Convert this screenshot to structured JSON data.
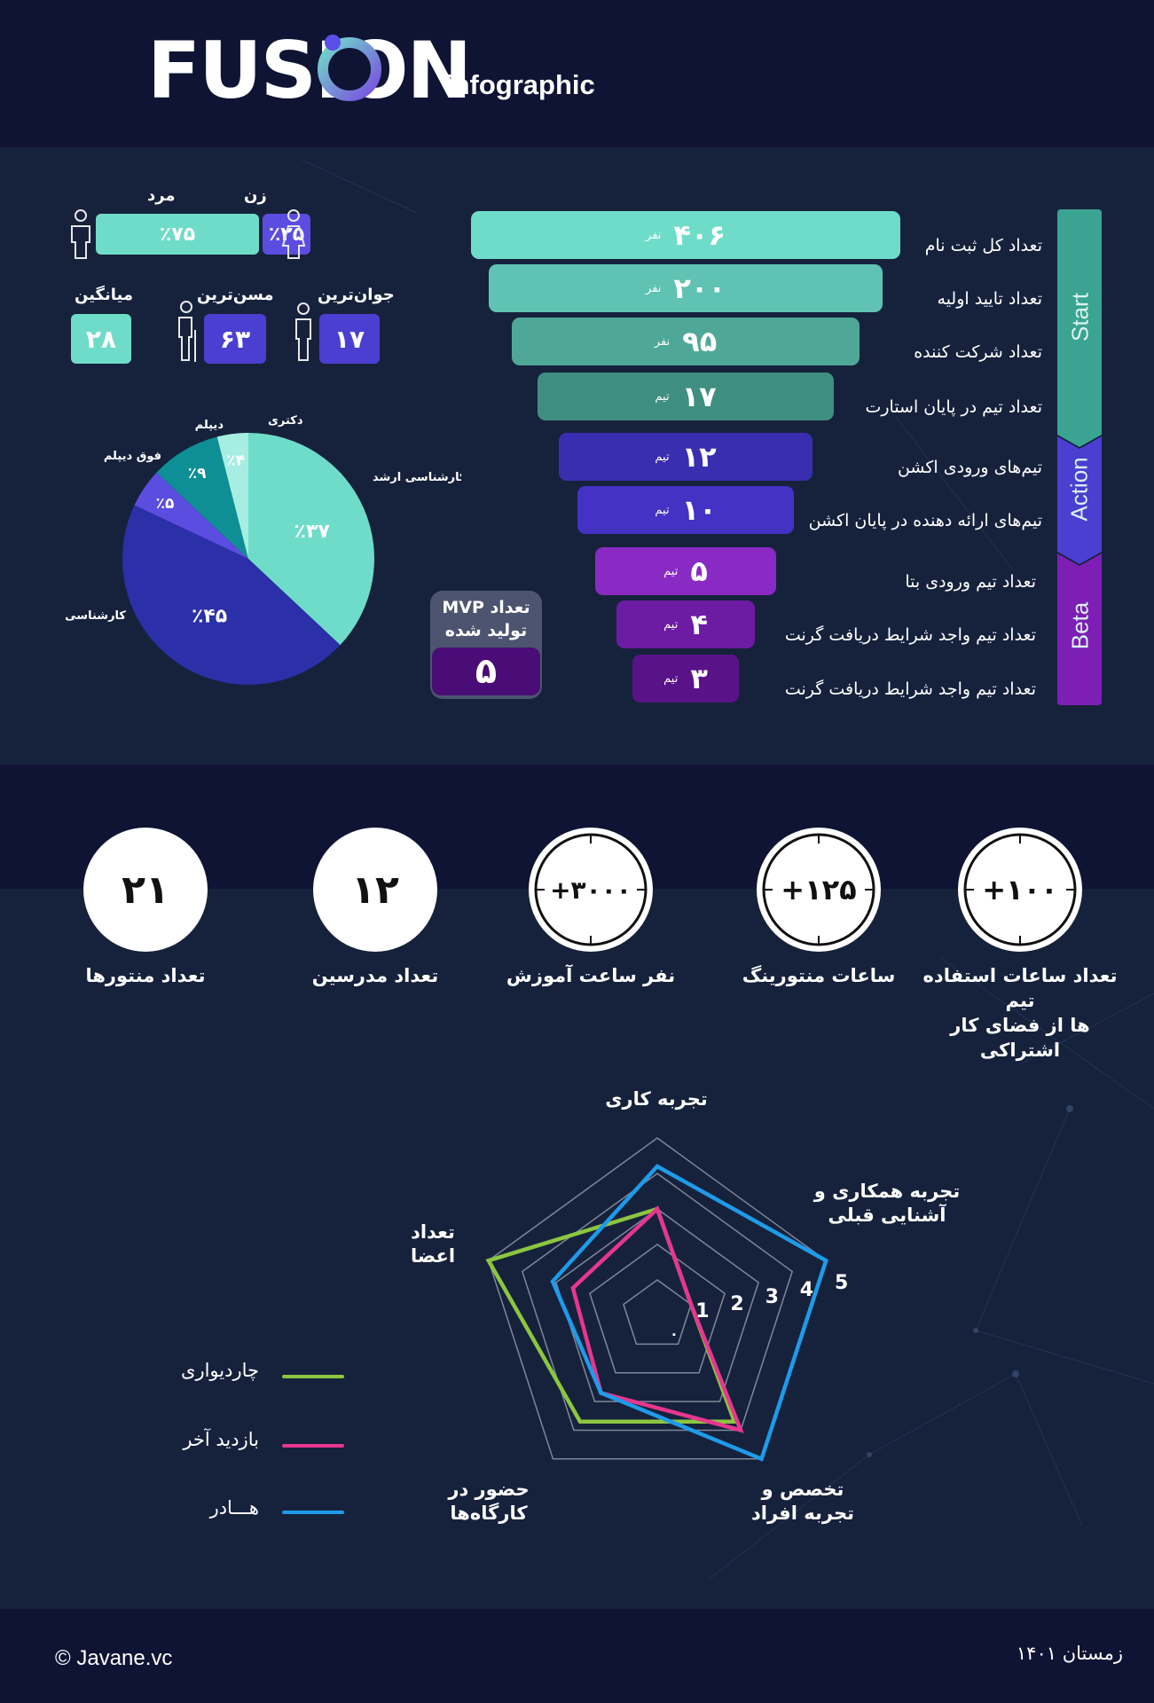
{
  "header": {
    "logo_word": "FUSION",
    "logo_sub": "infographic"
  },
  "gender": {
    "male_label": "مرد",
    "female_label": "زن",
    "male_value": "٪۷۵",
    "female_value": "٪۲۵",
    "male_share": 0.75,
    "female_share": 0.25
  },
  "age": {
    "youngest_label": "جوان‌ترین",
    "youngest_value": "۱۷",
    "oldest_label": "مسن‌ترین",
    "oldest_value": "۶۳",
    "average_label": "میانگین",
    "average_value": "۲۸"
  },
  "education_chart": {
    "chart_data": {
      "type": "pie",
      "slices": [
        {
          "label": "کارشناسی ارشد",
          "value": 37,
          "display": "٪۳۷",
          "color": "#6fdcc9"
        },
        {
          "label": "کارشناسی",
          "value": 45,
          "display": "٪۴۵",
          "color": "#2b2fa8"
        },
        {
          "label": "فوق دیپلم",
          "value": 5,
          "display": "٪۵",
          "color": "#5b4de0"
        },
        {
          "label": "دیپلم",
          "value": 9,
          "display": "٪۹",
          "color": "#0e8f95"
        },
        {
          "label": "دکتری",
          "value": 4,
          "display": "٪۴",
          "color": "#a7eee2"
        }
      ]
    }
  },
  "mvp": {
    "title_line1": "تعداد MVP",
    "title_line2": "تولید شده",
    "value": "۵"
  },
  "funnel": {
    "stages": [
      {
        "name": "Start",
        "color": "#3aa391"
      },
      {
        "name": "Action",
        "color": "#4a3fd0"
      },
      {
        "name": "Beta",
        "color": "#7d1fb5"
      }
    ],
    "rows": [
      {
        "label": "تعداد کل ثبت نام",
        "value": "۴۰۶",
        "unit": "نفر",
        "color": "#6fdcc9"
      },
      {
        "label": "تعداد تایید اولیه",
        "value": "۲۰۰",
        "unit": "نفر",
        "color": "#5fc2b2"
      },
      {
        "label": "تعداد شرکت کننده",
        "value": "۹۵",
        "unit": "نفر",
        "color": "#4fa897"
      },
      {
        "label": "تعداد تیم در پایان استارت",
        "value": "۱۷",
        "unit": "تیم",
        "color": "#3f8f80"
      },
      {
        "label": "تیم‌های ورودی اکشن",
        "value": "۱۲",
        "unit": "تیم",
        "color": "#3a2eb0"
      },
      {
        "label": "تیم‌های ارائه دهنده در پایان اکشن",
        "value": "۱۰",
        "unit": "تیم",
        "color": "#4332c4"
      },
      {
        "label": "تعداد تیم ورودی بتا",
        "value": "۵",
        "unit": "تیم",
        "color": "#8a2ac4"
      },
      {
        "label": "تعداد تیم واجد شرایط دریافت گرنت",
        "value": "۴",
        "unit": "تیم",
        "color": "#6d1ba3"
      },
      {
        "label": "تعداد تیم واجد شرایط دریافت گرنت",
        "value": "۳",
        "unit": "تیم",
        "color": "#5a1288"
      }
    ]
  },
  "stats": [
    {
      "value": "۲۱",
      "label": "تعداد منتورها",
      "clock": false
    },
    {
      "value": "۱۲",
      "label": "تعداد مدرسین",
      "clock": false
    },
    {
      "value": "+۳۰۰۰",
      "label": "نفر ساعت آموزش",
      "clock": true
    },
    {
      "value": "+۱۲۵",
      "label": "ساعات منتورینگ",
      "clock": true
    },
    {
      "value": "+۱۰۰",
      "label_line1": "تعداد ساعات استفاده تیم",
      "label_line2": "ها از فضای کار اشتراکی",
      "clock": true
    }
  ],
  "radar": {
    "axis_labels": {
      "experience": "تجربه کاری",
      "collab_1": "تجربه همکاری و",
      "collab_2": "آشنایی قبلی",
      "expertise_1": "تخصص و",
      "expertise_2": "تجربه افراد",
      "workshops_1": "حضور در",
      "workshops_2": "کارگاه‌ها",
      "members_1": "تعداد",
      "members_2": "اعضا"
    },
    "scale_labels": [
      "۰",
      "1",
      "2",
      "3",
      "4",
      "5"
    ],
    "chart_data": {
      "type": "radar",
      "axes": [
        "تجربه کاری",
        "تجربه همکاری و آشنایی قبلی",
        "تخصص و تجربه افراد",
        "حضور در کارگاه‌ها",
        "تعداد اعضا"
      ],
      "range": [
        0,
        5
      ],
      "series": [
        {
          "name": "چاردیواری",
          "color": "#8cc63f",
          "values": [
            3.0,
            1.0,
            3.7,
            3.7,
            5.0
          ]
        },
        {
          "name": "بازدید آخر",
          "color": "#e7368f",
          "values": [
            3.0,
            1.0,
            4.0,
            2.7,
            2.5
          ]
        },
        {
          "name": "هـــادر",
          "color": "#1e9be9",
          "values": [
            4.2,
            5.0,
            5.0,
            2.7,
            3.1
          ]
        }
      ]
    }
  },
  "footer": {
    "copyright": "©  Javane.vc",
    "date": "زمستان ۱۴۰۱"
  }
}
